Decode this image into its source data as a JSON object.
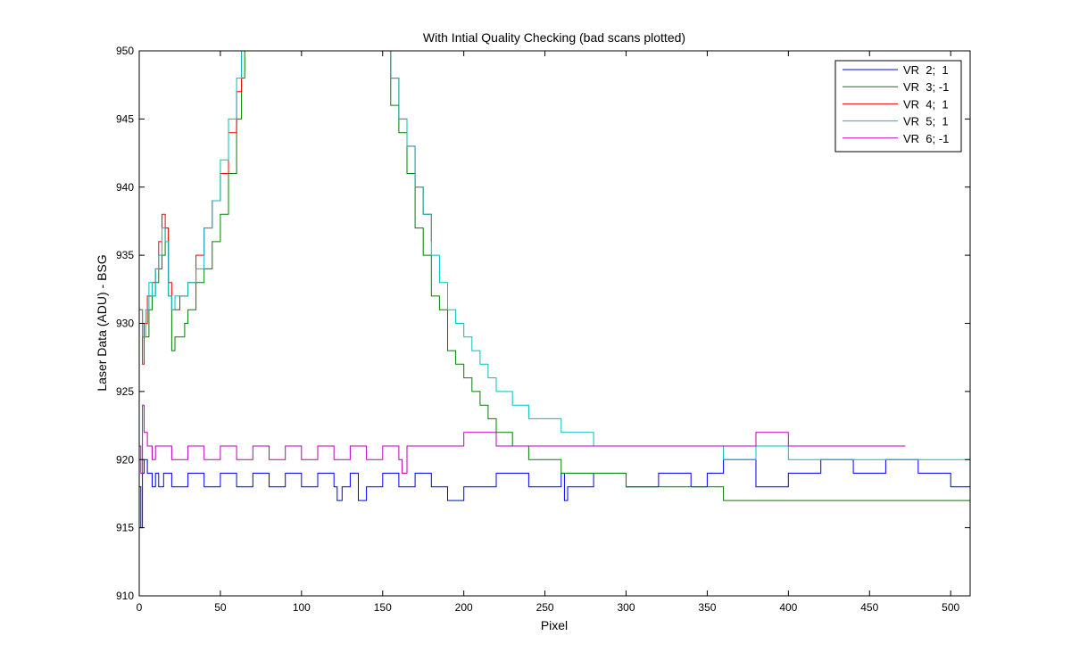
{
  "chart_data": {
    "type": "line",
    "title": "With Intial Quality Checking (bad scans plotted)",
    "xlabel": "Pixel",
    "ylabel": "Laser Data (ADU) - BSG",
    "xlim": [
      0,
      512
    ],
    "ylim": [
      910,
      950
    ],
    "xticks": [
      0,
      50,
      100,
      150,
      200,
      250,
      300,
      350,
      400,
      450,
      500
    ],
    "yticks": [
      910,
      915,
      920,
      925,
      930,
      935,
      940,
      945,
      950
    ],
    "grid": false,
    "legend_position": "top-right",
    "series": [
      {
        "name": "VR  2;  1",
        "color": "#0000ff",
        "x": [
          0,
          1,
          2,
          3,
          5,
          8,
          10,
          12,
          15,
          20,
          30,
          40,
          50,
          60,
          70,
          80,
          90,
          100,
          110,
          120,
          122,
          125,
          130,
          135,
          140,
          150,
          160,
          170,
          180,
          190,
          200,
          220,
          240,
          260,
          262,
          264,
          280,
          300,
          320,
          340,
          350,
          360,
          380,
          400,
          420,
          440,
          460,
          480,
          500,
          512
        ],
        "values": [
          918,
          915,
          919,
          920,
          919,
          918,
          919,
          918,
          919,
          918,
          919,
          918,
          919,
          918,
          919,
          918,
          919,
          918,
          919,
          918,
          917,
          918,
          919,
          917,
          918,
          919,
          918,
          919,
          918,
          917,
          918,
          919,
          918,
          919,
          917,
          918,
          919,
          918,
          919,
          918,
          919,
          920,
          918,
          919,
          920,
          919,
          920,
          919,
          918,
          919
        ]
      },
      {
        "name": "VR  3; -1",
        "color": "#008000",
        "x": [
          0,
          2,
          4,
          6,
          8,
          10,
          12,
          14,
          16,
          18,
          20,
          22,
          25,
          28,
          30,
          35,
          40,
          45,
          50,
          55,
          60,
          63,
          65,
          150,
          155,
          160,
          165,
          170,
          175,
          180,
          185,
          190,
          195,
          200,
          205,
          210,
          215,
          220,
          225,
          230,
          235,
          240,
          250,
          260,
          270,
          280,
          290,
          300,
          310,
          320,
          330,
          340,
          350,
          360,
          370,
          380,
          390,
          400,
          420,
          440,
          460,
          480,
          500,
          512
        ],
        "values": [
          931,
          929,
          929,
          931,
          932,
          933,
          934,
          935,
          937,
          932,
          928,
          929,
          929,
          930,
          931,
          933,
          934,
          936,
          938,
          941,
          945,
          948,
          950,
          950,
          946,
          944,
          941,
          937,
          935,
          932,
          931,
          928,
          927,
          926,
          925,
          924,
          923,
          922,
          922,
          921,
          921,
          920,
          920,
          919,
          919,
          919,
          919,
          918,
          918,
          918,
          918,
          918,
          918,
          917,
          917,
          917,
          917,
          917,
          917,
          917,
          917,
          917,
          917,
          917
        ]
      },
      {
        "name": "VR  4;  1",
        "color": "#ff0000",
        "x": [
          0,
          2,
          3,
          5,
          8,
          10,
          12,
          14,
          16,
          18,
          20,
          22,
          25,
          30,
          35,
          40,
          45,
          50,
          55,
          60,
          63,
          150,
          155,
          160,
          165,
          170,
          175,
          180
        ],
        "values": [
          931,
          927,
          930,
          932,
          933,
          934,
          936,
          938,
          937,
          933,
          931,
          931,
          932,
          933,
          935,
          937,
          939,
          941,
          944,
          947,
          950,
          950,
          948,
          945,
          943,
          940,
          938,
          936
        ]
      },
      {
        "name": "VR  5;  1",
        "color": "#00bfbf",
        "x": [
          0,
          2,
          4,
          6,
          8,
          10,
          12,
          14,
          16,
          18,
          20,
          22,
          25,
          30,
          35,
          40,
          45,
          50,
          55,
          60,
          63,
          150,
          155,
          160,
          165,
          170,
          175,
          180,
          185,
          190,
          195,
          200,
          205,
          210,
          215,
          220,
          225,
          230,
          235,
          240,
          250,
          260,
          270,
          280,
          290,
          300,
          320,
          340,
          360,
          380,
          400,
          420,
          440,
          460,
          480,
          500,
          512
        ],
        "values": [
          931,
          929,
          931,
          933,
          932,
          934,
          935,
          937,
          936,
          932,
          931,
          932,
          932,
          933,
          934,
          937,
          939,
          942,
          945,
          948,
          950,
          950,
          948,
          945,
          943,
          940,
          938,
          935,
          933,
          931,
          930,
          929,
          928,
          927,
          926,
          925,
          925,
          924,
          924,
          923,
          923,
          922,
          922,
          921,
          921,
          921,
          921,
          921,
          920,
          921,
          920,
          920,
          920,
          920,
          920,
          920,
          920
        ]
      },
      {
        "name": "VR  6; -1",
        "color": "#bf00bf",
        "x": [
          0,
          1,
          2,
          3,
          5,
          8,
          10,
          20,
          30,
          40,
          50,
          60,
          70,
          80,
          90,
          100,
          110,
          120,
          130,
          140,
          150,
          160,
          162,
          165,
          180,
          200,
          220,
          240,
          260,
          280,
          300,
          320,
          340,
          360,
          380,
          400,
          420,
          440,
          460,
          472
        ],
        "values": [
          921,
          919,
          924,
          922,
          921,
          920,
          921,
          920,
          921,
          920,
          921,
          920,
          921,
          920,
          921,
          920,
          921,
          920,
          921,
          920,
          921,
          920,
          919,
          921,
          921,
          922,
          921,
          921,
          921,
          921,
          921,
          921,
          921,
          921,
          922,
          921,
          921,
          921,
          921,
          921
        ]
      }
    ]
  }
}
